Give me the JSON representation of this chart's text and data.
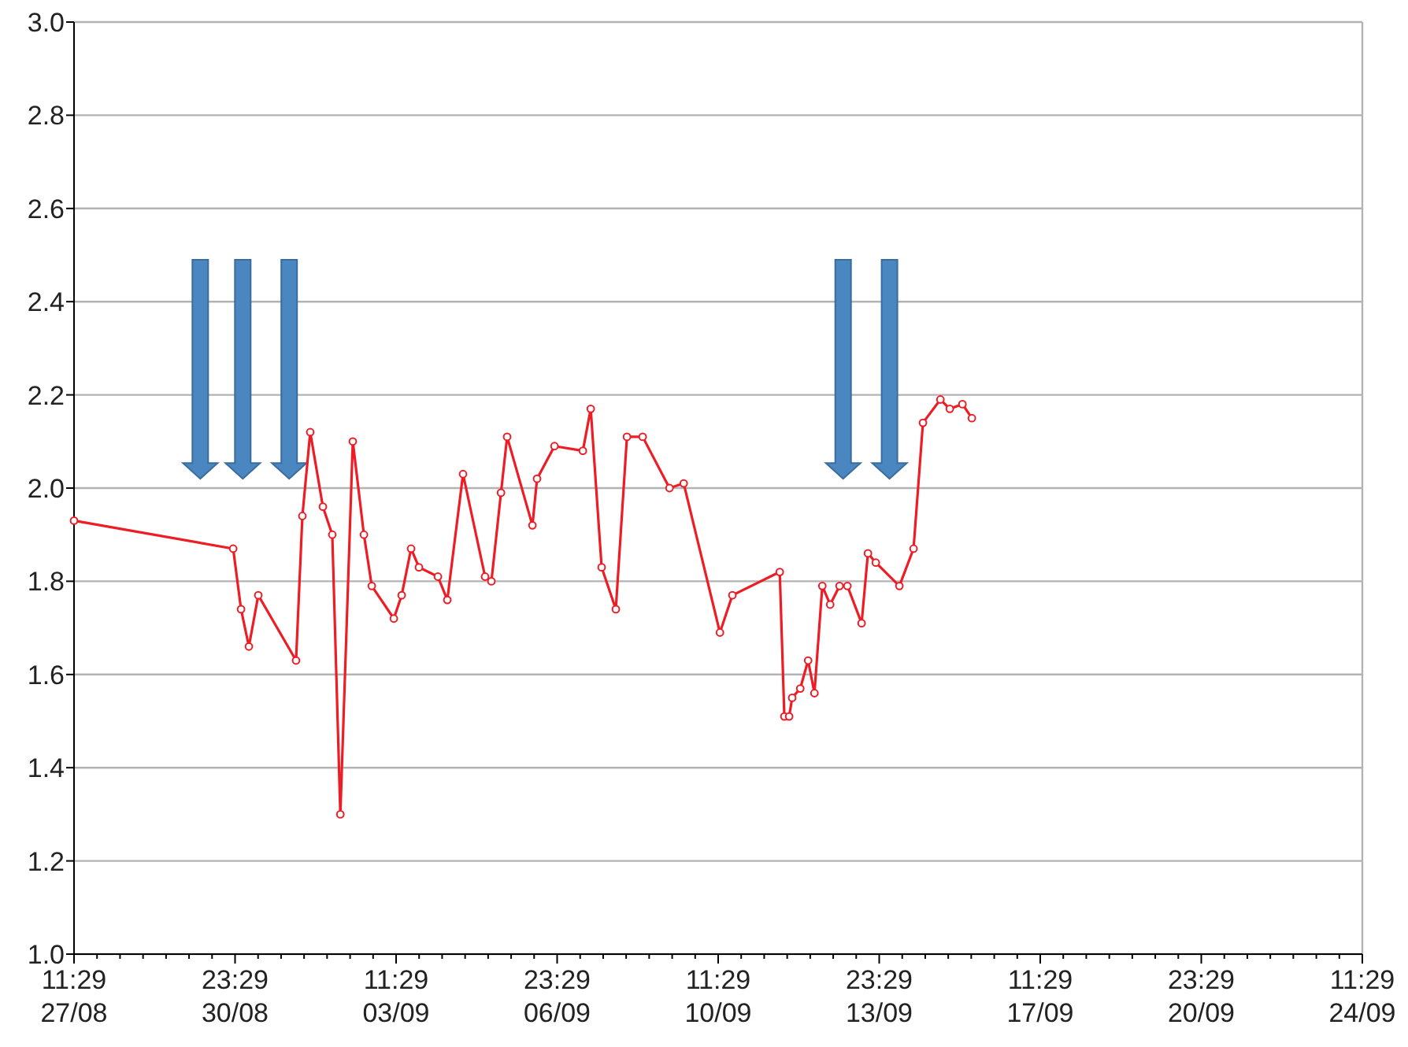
{
  "chart_data": {
    "type": "line",
    "grid": "y",
    "marker": "circle",
    "line_style": "solid",
    "xlim": [
      "--08-27T11:29",
      "--09-24T11:29"
    ],
    "xticks": [
      {
        "value": "--08-27T11:29",
        "label": "11:29\n27/08"
      },
      {
        "value": "--08-27T23:29",
        "label": null
      },
      {
        "value": "--08-28T11:29",
        "label": null
      },
      {
        "value": "--08-28T23:29",
        "label": null
      },
      {
        "value": "--08-29T11:29",
        "label": null
      },
      {
        "value": "--08-29T23:29",
        "label": null
      },
      {
        "value": "--08-30T11:29",
        "label": null
      },
      {
        "value": "--08-30T23:29",
        "label": "23:29\n30/08"
      },
      {
        "value": "--08-31T11:29",
        "label": null
      },
      {
        "value": "--08-31T23:29",
        "label": null
      },
      {
        "value": "--09-01T11:29",
        "label": null
      },
      {
        "value": "--09-01T23:29",
        "label": null
      },
      {
        "value": "--09-02T11:29",
        "label": null
      },
      {
        "value": "--09-02T23:29",
        "label": null
      },
      {
        "value": "--09-03T11:29",
        "label": "11:29\n03/09"
      },
      {
        "value": "--09-03T23:29",
        "label": null
      },
      {
        "value": "--09-04T11:29",
        "label": null
      },
      {
        "value": "--09-04T23:29",
        "label": null
      },
      {
        "value": "--09-05T11:29",
        "label": null
      },
      {
        "value": "--09-05T23:29",
        "label": null
      },
      {
        "value": "--09-06T11:29",
        "label": null
      },
      {
        "value": "--09-06T23:29",
        "label": "23:29\n06/09"
      },
      {
        "value": "--09-07T11:29",
        "label": null
      },
      {
        "value": "--09-07T23:29",
        "label": null
      },
      {
        "value": "--09-08T11:29",
        "label": null
      },
      {
        "value": "--09-08T23:29",
        "label": null
      },
      {
        "value": "--09-09T11:29",
        "label": null
      },
      {
        "value": "--09-09T23:29",
        "label": null
      },
      {
        "value": "--09-10T11:29",
        "label": "11:29\n10/09"
      },
      {
        "value": "--09-10T23:29",
        "label": null
      },
      {
        "value": "--09-11T11:29",
        "label": null
      },
      {
        "value": "--09-11T23:29",
        "label": null
      },
      {
        "value": "--09-12T11:29",
        "label": null
      },
      {
        "value": "--09-12T23:29",
        "label": null
      },
      {
        "value": "--09-13T11:29",
        "label": null
      },
      {
        "value": "--09-13T23:29",
        "label": "23:29\n13/09"
      },
      {
        "value": "--09-14T11:29",
        "label": null
      },
      {
        "value": "--09-14T23:29",
        "label": null
      },
      {
        "value": "--09-15T11:29",
        "label": null
      },
      {
        "value": "--09-15T23:29",
        "label": null
      },
      {
        "value": "--09-16T11:29",
        "label": null
      },
      {
        "value": "--09-16T23:29",
        "label": null
      },
      {
        "value": "--09-17T11:29",
        "label": "11:29\n17/09"
      },
      {
        "value": "--09-17T23:29",
        "label": null
      },
      {
        "value": "--09-18T11:29",
        "label": null
      },
      {
        "value": "--09-18T23:29",
        "label": null
      },
      {
        "value": "--09-19T11:29",
        "label": null
      },
      {
        "value": "--09-19T23:29",
        "label": null
      },
      {
        "value": "--09-20T11:29",
        "label": null
      },
      {
        "value": "--09-20T23:29",
        "label": "23:29\n20/09"
      },
      {
        "value": "--09-21T11:29",
        "label": null
      },
      {
        "value": "--09-21T23:29",
        "label": null
      },
      {
        "value": "--09-22T11:29",
        "label": null
      },
      {
        "value": "--09-22T23:29",
        "label": null
      },
      {
        "value": "--09-23T11:29",
        "label": null
      },
      {
        "value": "--09-23T23:29",
        "label": null
      },
      {
        "value": "--09-24T11:29",
        "label": "11:29\n24/09"
      }
    ],
    "ylim": [
      1.0,
      3.0
    ],
    "yticks": [
      {
        "value": 1.0,
        "label": "1.0"
      },
      {
        "value": 1.2,
        "label": "1.2"
      },
      {
        "value": 1.4,
        "label": "1.4"
      },
      {
        "value": 1.6,
        "label": "1.6"
      },
      {
        "value": 1.8,
        "label": "1.8"
      },
      {
        "value": 2.0,
        "label": "2.0"
      },
      {
        "value": 2.2,
        "label": "2.2"
      },
      {
        "value": 2.4,
        "label": "2.4"
      },
      {
        "value": 2.6,
        "label": "2.6"
      },
      {
        "value": 2.8,
        "label": "2.8"
      },
      {
        "value": 3.0,
        "label": "3.0"
      }
    ],
    "x": [
      "--08-27T11:29",
      "--08-30T22:30",
      "--08-31T02:36",
      "--08-31T06:42",
      "--08-31T11:36",
      "--09-01T07:18",
      "--09-01T10:36",
      "--09-01T14:42",
      "--09-01T21:18",
      "--09-02T02:12",
      "--09-02T06:24",
      "--09-02T12:54",
      "--09-02T18:42",
      "--09-02T22:48",
      "--09-03T10:18",
      "--09-03T14:24",
      "--09-03T19:18",
      "--09-03T23:24",
      "--09-04T09:18",
      "--09-04T14:12",
      "--09-04T22:24",
      "--09-05T09:54",
      "--09-05T13:12",
      "--09-05T18:12",
      "--09-05T21:24",
      "--09-06T10:36",
      "--09-06T13:00",
      "--09-06T22:06",
      "--09-07T12:54",
      "--09-07T17:00",
      "--09-07T22:42",
      "--09-08T06:06",
      "--09-08T11:54",
      "--09-08T20:06",
      "--09-09T10:06",
      "--09-09T17:30",
      "--09-10T12:24",
      "--09-10T18:54",
      "--09-11T19:36",
      "--09-11T22:00",
      "--09-12T00:30",
      "--09-12T02:06",
      "--09-12T06:18",
      "--09-12T10:24",
      "--09-12T13:42",
      "--09-12T17:48",
      "--09-12T21:54",
      "--09-13T02:48",
      "--09-13T06:54",
      "--09-13T14:18",
      "--09-13T17:36",
      "--09-13T21:42",
      "--09-14T10:00",
      "--09-14T17:24",
      "--09-14T22:18",
      "--09-15T07:24",
      "--09-15T12:18",
      "--09-15T18:54",
      "--09-15T23:48"
    ],
    "series": [
      {
        "color": "#ee1c25",
        "values": [
          1.93,
          1.87,
          1.74,
          1.66,
          1.77,
          1.63,
          1.94,
          2.12,
          1.96,
          1.9,
          1.3,
          2.1,
          1.9,
          1.79,
          1.72,
          1.77,
          1.87,
          1.83,
          1.81,
          1.76,
          2.03,
          1.81,
          1.8,
          1.99,
          2.11,
          1.92,
          2.02,
          2.09,
          2.08,
          2.17,
          1.83,
          1.74,
          2.11,
          2.11,
          2.0,
          2.01,
          1.69,
          1.77,
          1.82,
          1.51,
          1.51,
          1.55,
          1.57,
          1.63,
          1.56,
          1.79,
          1.75,
          1.79,
          1.79,
          1.71,
          1.86,
          1.84,
          1.79,
          1.87,
          2.14,
          2.19,
          2.17,
          2.18,
          2.15
        ]
      }
    ]
  }
}
